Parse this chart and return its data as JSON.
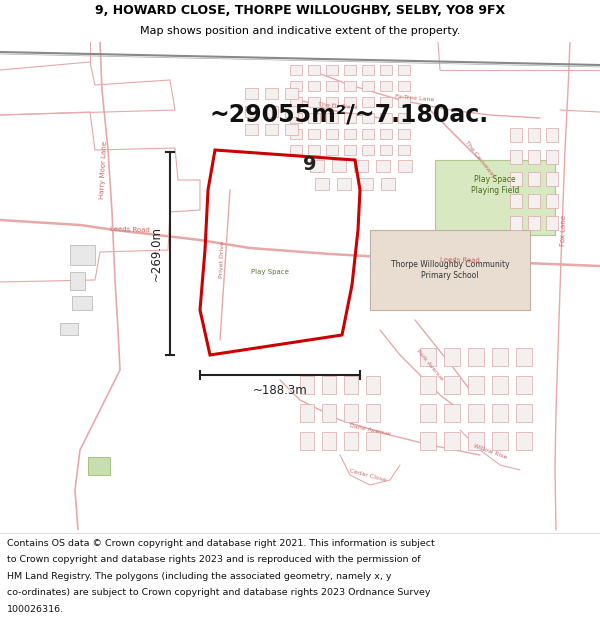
{
  "title_line1": "9, HOWARD CLOSE, THORPE WILLOUGHBY, SELBY, YO8 9FX",
  "title_line2": "Map shows position and indicative extent of the property.",
  "area_text": "~29055m²/~7.180ac.",
  "width_text": "~188.3m",
  "height_text": "~269.0m",
  "number_text": "9",
  "footer_lines": [
    "Contains OS data © Crown copyright and database right 2021. This information is subject",
    "to Crown copyright and database rights 2023 and is reproduced with the permission of",
    "HM Land Registry. The polygons (including the associated geometry, namely x, y",
    "co-ordinates) are subject to Crown copyright and database rights 2023 Ordnance Survey",
    "100026316."
  ],
  "map_bg": "#ffffff",
  "title_bg": "#ffffff",
  "footer_bg": "#ffffff",
  "road_outline": "#e8a8a8",
  "road_fill": "#f8f0f0",
  "building_fill": "#f0e8e8",
  "building_edge": "#d09090",
  "green1_fill": "#d8e8c0",
  "green2_fill": "#e0d8d0",
  "property_edge": "#cc0000",
  "property_fill": "none",
  "measure_color": "#222222",
  "label_color": "#cc6666",
  "text_color": "#333333",
  "title_fs": 9.0,
  "subtitle_fs": 8.0,
  "area_fs": 17,
  "measure_fs": 8.5,
  "number_fs": 14,
  "footer_fs": 6.8,
  "label_fs": 5.0
}
